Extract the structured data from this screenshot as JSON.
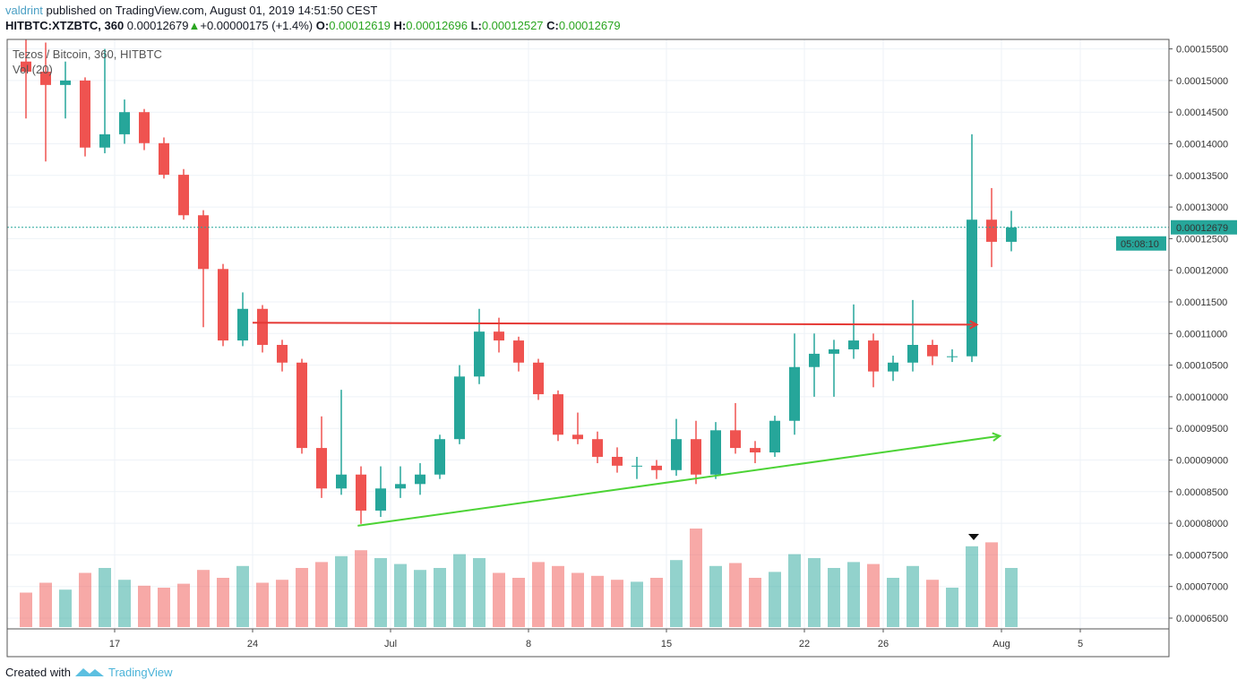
{
  "header": {
    "author": "valdrint",
    "published_text": "published on TradingView.com, August 01, 2019 14:51:50 CEST",
    "symbol": "HITBTC:XTZBTC, 360",
    "last_price": "0.00012679",
    "change": "+0.00000175 (+1.4%)",
    "o_label": "O:",
    "o_value": "0.00012619",
    "h_label": "H:",
    "h_value": "0.00012696",
    "l_label": "L:",
    "l_value": "0.00012527",
    "c_label": "C:",
    "c_value": "0.00012679",
    "up_icon": "triangle-up-icon"
  },
  "legend": {
    "series_title": "Tezos / Bitcoin, 360, HITBTC",
    "volume_title": "Vol (20)"
  },
  "price_badge": "0.00012679",
  "countdown_badge": "05:08:10",
  "footer": {
    "created_with": "Created with",
    "brand": "TradingView"
  },
  "chart_data": {
    "type": "candlestick",
    "interval": "360",
    "note_resolution": "daily",
    "colors": {
      "up": "#26a69a",
      "down": "#ef5350",
      "grid": "#eef2f7",
      "current_price_line": "#26a69a",
      "resistance_line": "#e53935",
      "support_line": "#4cd335"
    },
    "ylim": [
      6.5e-05,
      0.000155
    ],
    "y_ticks": [
      "0.00015500",
      "0.00015000",
      "0.00014500",
      "0.00014000",
      "0.00013500",
      "0.00013000",
      "0.00012500",
      "0.00012000",
      "0.00011500",
      "0.00011000",
      "0.00010500",
      "0.00010000",
      "0.00009500",
      "0.00009000",
      "0.00008500",
      "0.00008000",
      "0.00007500",
      "0.00007000",
      "0.00006500"
    ],
    "x_ticks": [
      {
        "date": "2019-06-17",
        "label": "17"
      },
      {
        "date": "2019-06-24",
        "label": "24"
      },
      {
        "date": "2019-07-01",
        "label": "Jul"
      },
      {
        "date": "2019-07-08",
        "label": "8"
      },
      {
        "date": "2019-07-15",
        "label": "15"
      },
      {
        "date": "2019-07-22",
        "label": "22"
      },
      {
        "date": "2019-07-26",
        "label": "26"
      },
      {
        "date": "2019-08-01",
        "label": "Aug"
      },
      {
        "date": "2019-08-05",
        "label": "5"
      }
    ],
    "current_price": 0.00012679,
    "candles": [
      [
        "2019-06-12",
        0.000153,
        0.0001565,
        0.000144,
        0.0001514,
        35
      ],
      [
        "2019-06-13",
        0.0001514,
        0.000156,
        0.0001372,
        0.0001493,
        45
      ],
      [
        "2019-06-14",
        0.0001493,
        0.000153,
        0.000144,
        0.00015,
        38
      ],
      [
        "2019-06-15",
        0.00015,
        0.0001505,
        0.000138,
        0.0001394,
        55
      ],
      [
        "2019-06-16",
        0.0001394,
        0.000155,
        0.0001385,
        0.0001415,
        60
      ],
      [
        "2019-06-17",
        0.0001415,
        0.000147,
        0.00014,
        0.000145,
        48
      ],
      [
        "2019-06-18",
        0.000145,
        0.0001455,
        0.000139,
        0.0001401,
        42
      ],
      [
        "2019-06-19",
        0.0001401,
        0.000141,
        0.0001345,
        0.0001351,
        40
      ],
      [
        "2019-06-20",
        0.0001351,
        0.000136,
        0.000128,
        0.0001287,
        44
      ],
      [
        "2019-06-21",
        0.0001287,
        0.0001295,
        0.000111,
        0.0001202,
        58
      ],
      [
        "2019-06-22",
        0.0001202,
        0.000121,
        0.000108,
        0.0001089,
        50
      ],
      [
        "2019-06-23",
        0.0001089,
        0.0001165,
        0.000108,
        0.0001139,
        62
      ],
      [
        "2019-06-24",
        0.0001139,
        0.0001145,
        0.000107,
        0.0001082,
        45
      ],
      [
        "2019-06-25",
        0.0001082,
        0.000109,
        0.000104,
        0.0001054,
        48
      ],
      [
        "2019-06-26",
        0.0001054,
        0.000106,
        9.1e-05,
        9.19e-05,
        60
      ],
      [
        "2019-06-27",
        9.19e-05,
        9.69e-05,
        8.4e-05,
        8.55e-05,
        66
      ],
      [
        "2019-06-28",
        8.55e-05,
        0.0001011,
        8.45e-05,
        8.77e-05,
        72
      ],
      [
        "2019-06-29",
        8.77e-05,
        8.9e-05,
        7.99e-05,
        8.2e-05,
        78
      ],
      [
        "2019-06-30",
        8.2e-05,
        8.9e-05,
        8.1e-05,
        8.55e-05,
        70
      ],
      [
        "2019-07-01",
        8.55e-05,
        8.9e-05,
        8.4e-05,
        8.62e-05,
        64
      ],
      [
        "2019-07-02",
        8.62e-05,
        8.95e-05,
        8.45e-05,
        8.77e-05,
        58
      ],
      [
        "2019-07-03",
        8.77e-05,
        9.4e-05,
        8.7e-05,
        9.33e-05,
        60
      ],
      [
        "2019-07-04",
        9.33e-05,
        0.000105,
        9.25e-05,
        0.0001032,
        74
      ],
      [
        "2019-07-05",
        0.0001032,
        0.0001139,
        0.000102,
        0.0001103,
        70
      ],
      [
        "2019-07-06",
        0.0001103,
        0.0001125,
        0.000107,
        0.0001089,
        55
      ],
      [
        "2019-07-07",
        0.0001089,
        0.0001095,
        0.000104,
        0.0001054,
        50
      ],
      [
        "2019-07-08",
        0.0001054,
        0.000106,
        9.95e-05,
        0.0001004,
        66
      ],
      [
        "2019-07-09",
        0.0001004,
        0.000101,
        9.3e-05,
        9.4e-05,
        62
      ],
      [
        "2019-07-10",
        9.4e-05,
        9.75e-05,
        9.25e-05,
        9.33e-05,
        55
      ],
      [
        "2019-07-11",
        9.33e-05,
        9.45e-05,
        8.95e-05,
        9.05e-05,
        52
      ],
      [
        "2019-07-12",
        9.05e-05,
        9.2e-05,
        8.8e-05,
        8.91e-05,
        48
      ],
      [
        "2019-07-13",
        8.91e-05,
        9.05e-05,
        8.7e-05,
        8.91e-05,
        46
      ],
      [
        "2019-07-14",
        8.91e-05,
        9e-05,
        8.7e-05,
        8.84e-05,
        50
      ],
      [
        "2019-07-15",
        8.84e-05,
        9.65e-05,
        8.75e-05,
        9.33e-05,
        68
      ],
      [
        "2019-07-16",
        9.33e-05,
        9.62e-05,
        8.62e-05,
        8.77e-05,
        100
      ],
      [
        "2019-07-17",
        8.77e-05,
        9.6e-05,
        8.7e-05,
        9.47e-05,
        62
      ],
      [
        "2019-07-18",
        9.47e-05,
        9.9e-05,
        9.1e-05,
        9.19e-05,
        65
      ],
      [
        "2019-07-19",
        9.19e-05,
        9.3e-05,
        8.95e-05,
        9.12e-05,
        50
      ],
      [
        "2019-07-20",
        9.12e-05,
        9.7e-05,
        9.05e-05,
        9.62e-05,
        56
      ],
      [
        "2019-07-21",
        9.62e-05,
        0.00011,
        9.4e-05,
        0.0001047,
        74
      ],
      [
        "2019-07-22",
        0.0001047,
        0.00011,
        0.0001,
        0.0001068,
        70
      ],
      [
        "2019-07-23",
        0.0001068,
        0.000109,
        0.0001,
        0.0001075,
        60
      ],
      [
        "2019-07-24",
        0.0001075,
        0.0001146,
        0.000106,
        0.0001089,
        66
      ],
      [
        "2019-07-25",
        0.0001089,
        0.00011,
        0.0001015,
        0.000104,
        64
      ],
      [
        "2019-07-26",
        0.000104,
        0.0001065,
        0.0001025,
        0.0001054,
        50
      ],
      [
        "2019-07-27",
        0.0001054,
        0.0001153,
        0.000104,
        0.0001082,
        62
      ],
      [
        "2019-07-28",
        0.0001082,
        0.000109,
        0.000105,
        0.0001064,
        48
      ],
      [
        "2019-07-29",
        0.0001064,
        0.0001075,
        0.0001055,
        0.0001064,
        40
      ],
      [
        "2019-07-30",
        0.0001064,
        0.0001415,
        0.0001055,
        0.000128,
        82
      ],
      [
        "2019-07-31",
        0.000128,
        0.000133,
        0.0001205,
        0.0001245,
        86
      ],
      [
        "2019-08-01",
        0.0001245,
        0.0001294,
        0.000123,
        0.00012679,
        60
      ]
    ],
    "candle_fields": [
      "date",
      "open",
      "high",
      "low",
      "close",
      "relative_volume"
    ],
    "drawings": [
      {
        "type": "arrow-line",
        "color": "#e53935",
        "from": [
          "2019-06-24T00:00",
          0.0001117
        ],
        "to": [
          "2019-07-30T18:00",
          0.0001114
        ]
      },
      {
        "type": "arrow-line",
        "color": "#4cd335",
        "from": [
          "2019-06-29T08:00",
          7.96e-05
        ],
        "to": [
          "2019-07-31T22:00",
          9.38e-05
        ]
      }
    ]
  }
}
